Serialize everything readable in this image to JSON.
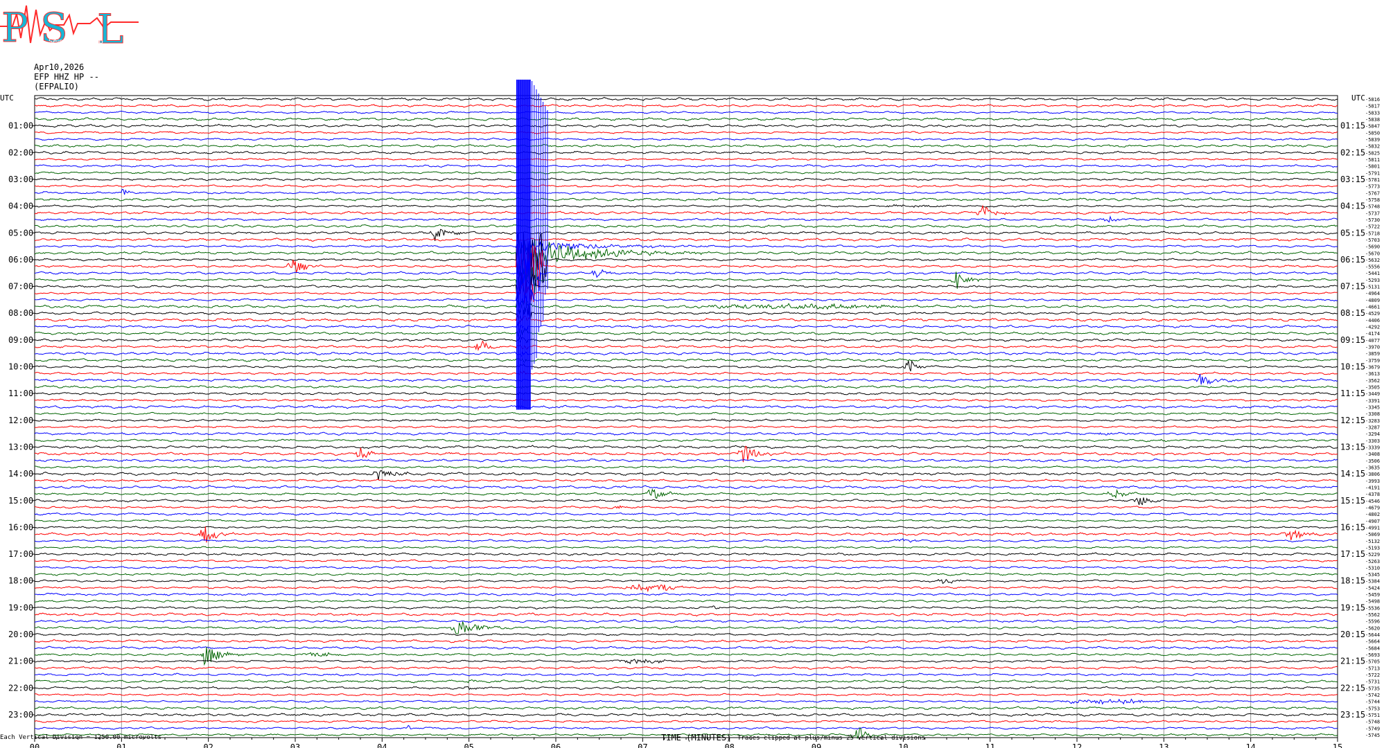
{
  "header": {
    "logo_text": "PSL",
    "logo_subtitle": "Seismology Lab",
    "date": "Apr10,2026",
    "channel": "EFP HHZ HP --",
    "station": "(EFPALIO)"
  },
  "footer": {
    "scale_note": "Each Vertical Division = 1250.00 microvolts",
    "clip_note": "Traces clipped at plus/minus 25 vertical divisions"
  },
  "colors": {
    "trace_cycle": [
      "#000000",
      "#ff0000",
      "#0000ff",
      "#006400"
    ],
    "grid": "#9a9a9a",
    "logo_red": "#ff2a2a",
    "logo_cyan": "#17b7d6"
  },
  "chart_data": {
    "type": "line",
    "title": "",
    "xlabel": "TIME (MINUTES)",
    "x_ticks": [
      "00",
      "01",
      "02",
      "03",
      "04",
      "05",
      "06",
      "07",
      "08",
      "09",
      "10",
      "11",
      "12",
      "13",
      "14",
      "15"
    ],
    "xlim": [
      0,
      15
    ],
    "left_axis_title": "UTC",
    "right_axis_title": "UTC",
    "left_hour_labels": [
      "01:00",
      "02:00",
      "03:00",
      "04:00",
      "05:00",
      "06:00",
      "07:00",
      "08:00",
      "09:00",
      "10:00",
      "11:00",
      "12:00",
      "13:00",
      "14:00",
      "15:00",
      "16:00",
      "17:00",
      "18:00",
      "19:00",
      "20:00",
      "21:00",
      "22:00",
      "23:00"
    ],
    "right_hour_labels": [
      "01:15",
      "02:15",
      "03:15",
      "04:15",
      "05:15",
      "06:15",
      "07:15",
      "08:15",
      "09:15",
      "10:15",
      "11:15",
      "12:15",
      "13:15",
      "14:15",
      "15:15",
      "16:15",
      "17:15",
      "18:15",
      "19:15",
      "20:15",
      "21:15",
      "22:15",
      "23:15"
    ],
    "trace_minutes": 15,
    "trace_count": 96,
    "trace_offsets": [
      "-5816",
      "-5817",
      "-5833",
      "-5838",
      "-5847",
      "-5850",
      "-5839",
      "-5832",
      "-5825",
      "-5811",
      "-5801",
      "-5791",
      "-5781",
      "-5773",
      "-5767",
      "-5758",
      "-5748",
      "-5737",
      "-5730",
      "-5722",
      "-5718",
      "-5703",
      "-5690",
      "-5670",
      "-5632",
      "-5556",
      "-5441",
      "-5293",
      "-5131",
      "-4964",
      "-4809",
      "-4661",
      "-4529",
      "-4406",
      "-4292",
      "-4174",
      "-4077",
      "-3970",
      "-3859",
      "-3759",
      "-3679",
      "-3613",
      "-3562",
      "-3505",
      "-3449",
      "-3391",
      "-3345",
      "-3308",
      "-3283",
      "-3287",
      "-3294",
      "-3303",
      "-3339",
      "-3408",
      "-3506",
      "-3635",
      "-3806",
      "-3993",
      "-4191",
      "-4378",
      "-4546",
      "-4679",
      "-4802",
      "-4907",
      "-4991",
      "-5069",
      "-5132",
      "-5193",
      "-5229",
      "-5263",
      "-5310",
      "-5345",
      "-5384",
      "-5424",
      "-5459",
      "-5498",
      "-5536",
      "-5562",
      "-5596",
      "-5620",
      "-5644",
      "-5664",
      "-5684",
      "-5693",
      "-5705",
      "-5713",
      "-5722",
      "-5731",
      "-5735",
      "-5742",
      "-5744",
      "-5753",
      "-5751",
      "-5748",
      "-5749",
      "-5745"
    ],
    "events": [
      {
        "trace": 14,
        "minute": 1.0,
        "amp": 6,
        "dur": 0.3,
        "type": "burst"
      },
      {
        "trace": 31,
        "minute": 7.3,
        "amp": 3,
        "dur": 3.0,
        "type": "noise"
      },
      {
        "trace": 18,
        "minute": 12.35,
        "amp": 6,
        "dur": 0.3,
        "type": "burst"
      },
      {
        "trace": 16,
        "minute": 9.75,
        "amp": 1.5,
        "dur": 0.8,
        "type": "noise"
      },
      {
        "trace": 17,
        "minute": 10.9,
        "amp": 14,
        "dur": 0.5,
        "type": "burst"
      },
      {
        "trace": 20,
        "minute": 4.6,
        "amp": 14,
        "dur": 0.4,
        "type": "burst"
      },
      {
        "trace": 25,
        "minute": 2.95,
        "amp": 16,
        "dur": 0.4,
        "type": "burst"
      },
      {
        "trace": 26,
        "minute": 6.45,
        "amp": 10,
        "dur": 0.3,
        "type": "burst"
      },
      {
        "trace": 27,
        "minute": 10.6,
        "amp": 18,
        "dur": 0.4,
        "type": "burst"
      },
      {
        "trace": 37,
        "minute": 5.1,
        "amp": 12,
        "dur": 0.4,
        "type": "burst"
      },
      {
        "trace": 40,
        "minute": 10.05,
        "amp": 14,
        "dur": 0.4,
        "type": "burst"
      },
      {
        "trace": 42,
        "minute": 13.4,
        "amp": 10,
        "dur": 0.6,
        "type": "burst"
      },
      {
        "trace": 50,
        "minute": 12.3,
        "amp": 4,
        "dur": 0.2,
        "type": "burst"
      },
      {
        "trace": 51,
        "minute": 13.0,
        "amp": 3,
        "dur": 0.2,
        "type": "burst"
      },
      {
        "trace": 53,
        "minute": 3.75,
        "amp": 12,
        "dur": 0.3,
        "type": "burst"
      },
      {
        "trace": 53,
        "minute": 8.15,
        "amp": 16,
        "dur": 0.5,
        "type": "burst"
      },
      {
        "trace": 56,
        "minute": 3.95,
        "amp": 10,
        "dur": 0.6,
        "type": "burst"
      },
      {
        "trace": 59,
        "minute": 7.1,
        "amp": 14,
        "dur": 0.4,
        "type": "burst"
      },
      {
        "trace": 59,
        "minute": 12.4,
        "amp": 12,
        "dur": 0.4,
        "type": "burst"
      },
      {
        "trace": 60,
        "minute": 12.7,
        "amp": 12,
        "dur": 0.4,
        "type": "burst"
      },
      {
        "trace": 61,
        "minute": 6.7,
        "amp": 4,
        "dur": 0.2,
        "type": "burst"
      },
      {
        "trace": 65,
        "minute": 1.95,
        "amp": 18,
        "dur": 0.4,
        "type": "burst"
      },
      {
        "trace": 65,
        "minute": 14.45,
        "amp": 14,
        "dur": 0.4,
        "type": "burst"
      },
      {
        "trace": 66,
        "minute": 9.9,
        "amp": 2,
        "dur": 0.3,
        "type": "noise"
      },
      {
        "trace": 72,
        "minute": 10.45,
        "amp": 6,
        "dur": 0.4,
        "type": "burst"
      },
      {
        "trace": 73,
        "minute": 6.7,
        "amp": 4,
        "dur": 0.9,
        "type": "noise"
      },
      {
        "trace": 76,
        "minute": 7.8,
        "amp": 3,
        "dur": 0.2,
        "type": "burst"
      },
      {
        "trace": 79,
        "minute": 4.85,
        "amp": 14,
        "dur": 0.8,
        "type": "burst"
      },
      {
        "trace": 83,
        "minute": 1.95,
        "amp": 18,
        "dur": 0.6,
        "type": "burst"
      },
      {
        "trace": 83,
        "minute": 3.0,
        "amp": 2,
        "dur": 0.6,
        "type": "noise"
      },
      {
        "trace": 84,
        "minute": 6.6,
        "amp": 3,
        "dur": 0.8,
        "type": "noise"
      },
      {
        "trace": 87,
        "minute": 5.0,
        "amp": 3,
        "dur": 0.3,
        "type": "burst"
      },
      {
        "trace": 88,
        "minute": 5.0,
        "amp": 3,
        "dur": 0.3,
        "type": "burst"
      },
      {
        "trace": 90,
        "minute": 11.8,
        "amp": 3,
        "dur": 1.2,
        "type": "noise"
      },
      {
        "trace": 94,
        "minute": 4.3,
        "amp": 4,
        "dur": 0.2,
        "type": "burst"
      },
      {
        "trace": 95,
        "minute": 9.45,
        "amp": 16,
        "dur": 0.4,
        "type": "burst"
      }
    ],
    "major_event": {
      "trace": 22,
      "minute": 5.55,
      "end_trace": 46,
      "coda_minutes": 2.2,
      "color": "#0000ff"
    }
  }
}
